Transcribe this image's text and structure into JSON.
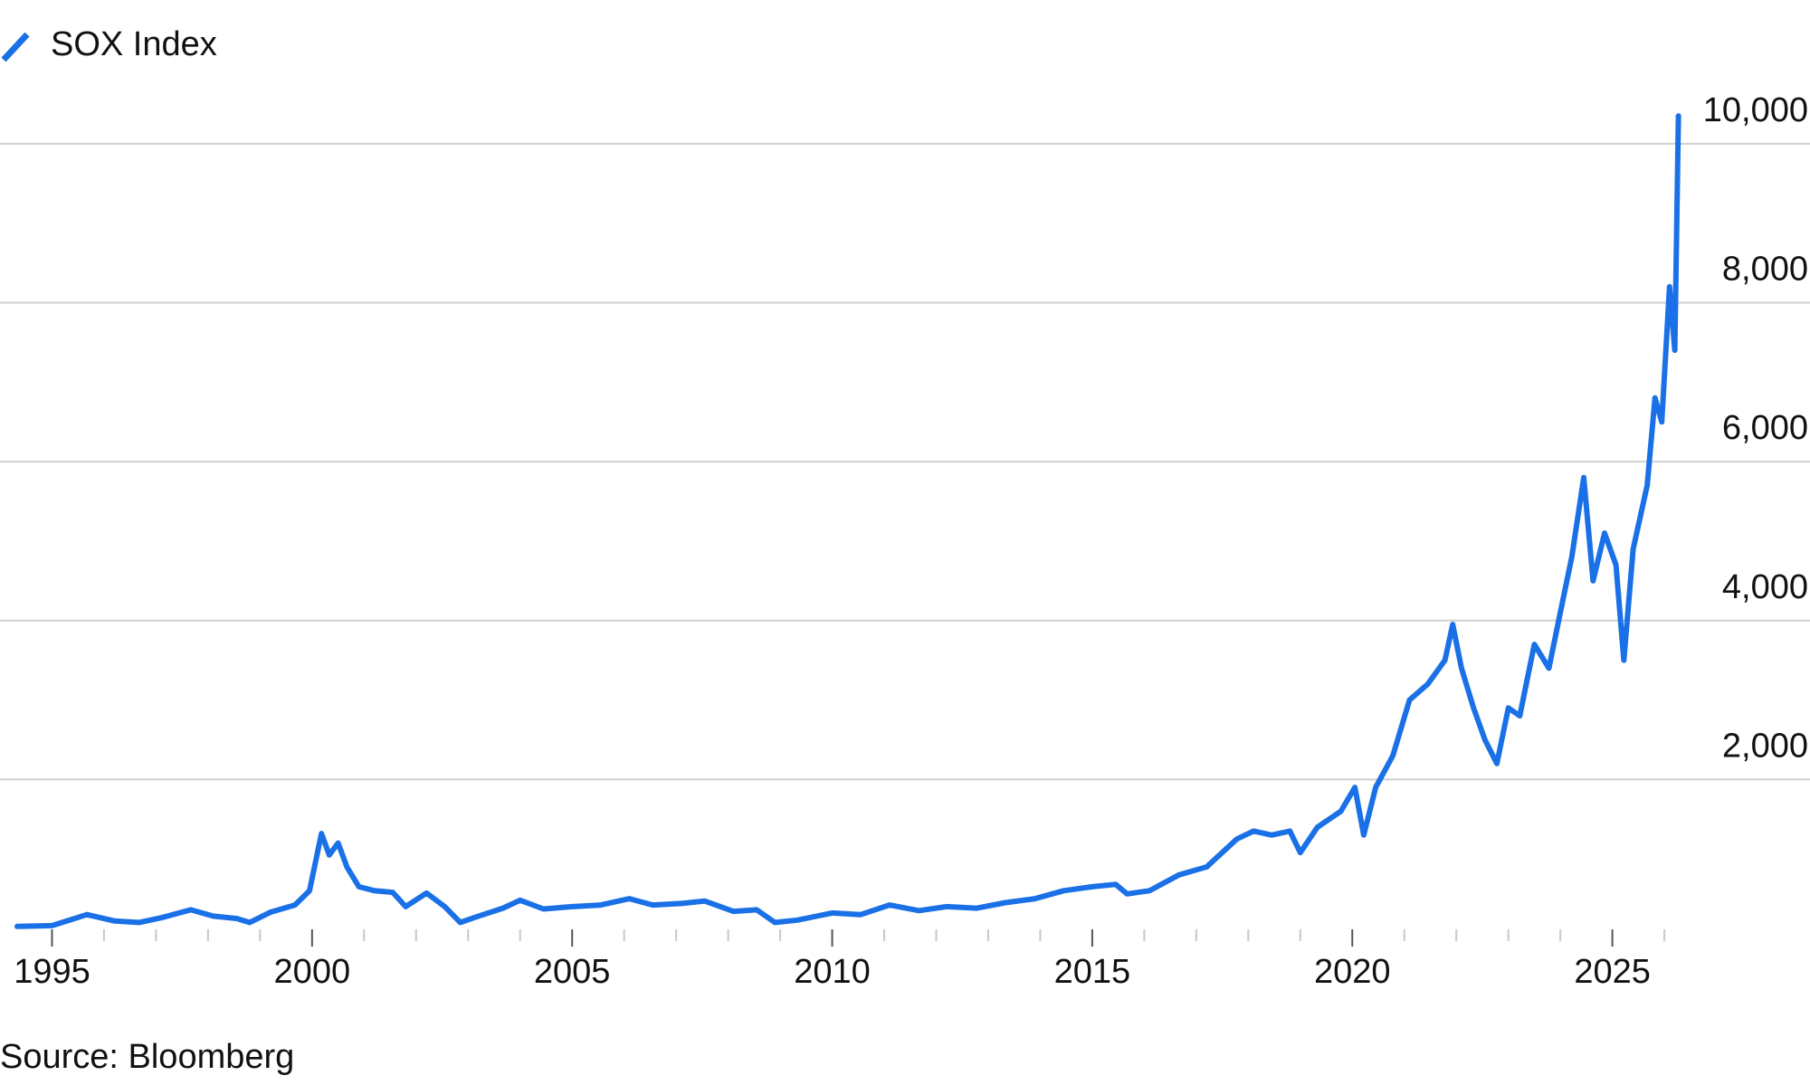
{
  "chart_data": {
    "type": "line",
    "source": "Source: Bloomberg",
    "x": [
      1994.33,
      1995.0,
      1995.67,
      1996.2,
      1996.67,
      1997.1,
      1997.67,
      1998.1,
      1998.55,
      1998.8,
      1999.2,
      1999.67,
      1999.95,
      2000.18,
      2000.33,
      2000.5,
      2000.67,
      2000.9,
      2001.2,
      2001.55,
      2001.8,
      2002.2,
      2002.55,
      2002.85,
      2003.2,
      2003.67,
      2004.0,
      2004.45,
      2005.0,
      2005.55,
      2006.1,
      2006.55,
      2007.1,
      2007.55,
      2008.1,
      2008.55,
      2008.9,
      2009.33,
      2010.0,
      2010.55,
      2011.1,
      2011.67,
      2012.2,
      2012.78,
      2013.33,
      2013.9,
      2014.45,
      2015.0,
      2015.45,
      2015.67,
      2016.1,
      2016.67,
      2017.2,
      2017.78,
      2018.1,
      2018.45,
      2018.8,
      2019.0,
      2019.33,
      2019.78,
      2020.05,
      2020.22,
      2020.45,
      2020.78,
      2021.1,
      2021.45,
      2021.78,
      2021.93,
      2022.1,
      2022.33,
      2022.55,
      2022.78,
      2023.0,
      2023.22,
      2023.5,
      2023.78,
      2024.0,
      2024.22,
      2024.45,
      2024.63,
      2024.85,
      2025.07,
      2025.22,
      2025.4,
      2025.67,
      2025.82,
      2025.95,
      2026.1,
      2026.2,
      2026.27
    ],
    "series": [
      {
        "name": "SOX Index",
        "color": "#1a70e6",
        "values": [
          150,
          160,
          300,
          220,
          200,
          260,
          360,
          280,
          250,
          200,
          330,
          420,
          600,
          1320,
          1050,
          1200,
          900,
          650,
          600,
          580,
          400,
          570,
          400,
          200,
          280,
          380,
          480,
          370,
          400,
          420,
          500,
          420,
          440,
          470,
          340,
          360,
          200,
          230,
          320,
          300,
          420,
          350,
          400,
          380,
          450,
          500,
          600,
          650,
          680,
          560,
          600,
          800,
          900,
          1250,
          1350,
          1300,
          1350,
          1080,
          1400,
          1600,
          1900,
          1300,
          1900,
          2300,
          3000,
          3200,
          3500,
          3950,
          3400,
          2900,
          2500,
          2200,
          2900,
          2800,
          3700,
          3400,
          4100,
          4800,
          5800,
          4500,
          5100,
          4700,
          3500,
          4900,
          5700,
          6800,
          6500,
          8200,
          7400,
          10350
        ]
      }
    ],
    "xlim": [
      1994,
      2028.8
    ],
    "xticks": [
      1995,
      2000,
      2005,
      2010,
      2015,
      2020,
      2025
    ],
    "xminorticks": [
      1996,
      1997,
      1998,
      1999,
      2001,
      2002,
      2003,
      2004,
      2006,
      2007,
      2008,
      2009,
      2011,
      2012,
      2013,
      2014,
      2016,
      2017,
      2018,
      2019,
      2021,
      2022,
      2023,
      2024,
      2026
    ],
    "ylim": [
      0,
      11000
    ],
    "yticks": [
      {
        "value": 2000,
        "label": "2,000"
      },
      {
        "value": 4000,
        "label": "4,000"
      },
      {
        "value": 6000,
        "label": "6,000"
      },
      {
        "value": 8000,
        "label": "8,000"
      },
      {
        "value": 10000,
        "label": "10,000"
      }
    ],
    "grid": true
  }
}
